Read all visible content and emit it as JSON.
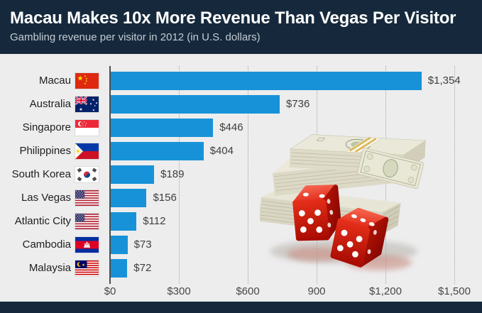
{
  "header": {
    "title": "Macau Makes 10x More Revenue Than Vegas Per Visitor",
    "subtitle": "Gambling revenue per visitor in 2012 (in U.S. dollars)"
  },
  "chart_data": {
    "type": "bar",
    "orientation": "horizontal",
    "title": "Macau Makes 10x More Revenue Than Vegas Per Visitor",
    "subtitle": "Gambling revenue per visitor in 2012 (in U.S. dollars)",
    "categories": [
      "Macau",
      "Australia",
      "Singapore",
      "Philippines",
      "South Korea",
      "Las Vegas",
      "Atlantic City",
      "Cambodia",
      "Malaysia"
    ],
    "values": [
      1354,
      736,
      446,
      404,
      189,
      156,
      112,
      73,
      72
    ],
    "value_labels": [
      "$1,354",
      "$736",
      "$446",
      "$404",
      "$189",
      "$156",
      "$112",
      "$73",
      "$72"
    ],
    "flags": [
      "china",
      "australia",
      "singapore",
      "philippines",
      "south-korea",
      "united-states",
      "united-states",
      "cambodia",
      "malaysia"
    ],
    "xlabel": "",
    "ylabel": "",
    "xlim": [
      0,
      1500
    ],
    "x_ticks": [
      {
        "value": 0,
        "label": "$0"
      },
      {
        "value": 300,
        "label": "$300"
      },
      {
        "value": 600,
        "label": "$600"
      },
      {
        "value": 900,
        "label": "900"
      },
      {
        "value": 1200,
        "label": "$1,200"
      },
      {
        "value": 1500,
        "label": "$1,500"
      }
    ],
    "grid": "dotted-vertical",
    "legend": "none",
    "bar_color": "#1792d8"
  },
  "colors": {
    "header_bg": "#16293c",
    "footer_bg": "#16293c",
    "chart_bg": "#ededee",
    "bar": "#1792d8",
    "axis": "#4d4d4d",
    "gridline": "#a5a5a5",
    "title_text": "#ffffff",
    "subtitle_text": "#c3cbd3",
    "label_text": "#1e1e1e",
    "value_text": "#3e3e3e"
  },
  "illustration": {
    "description": "stacks of U.S. dollar bills with two red dice"
  }
}
